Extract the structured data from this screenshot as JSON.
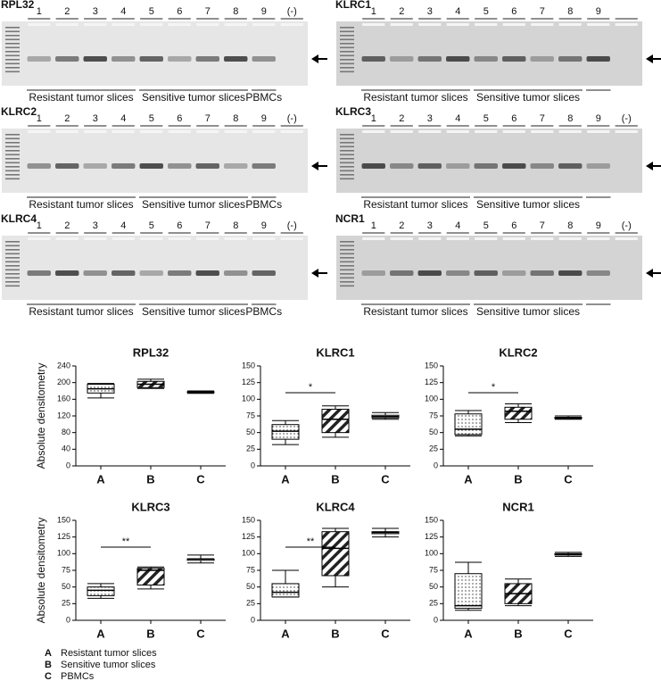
{
  "gels": [
    {
      "title": "RPL32",
      "lanes": [
        "1",
        "2",
        "3",
        "4",
        "5",
        "6",
        "7",
        "8",
        "9",
        "(-)"
      ],
      "groups": [
        "Resistant tumor slices",
        "Sensitive tumor slices",
        "PBMCs"
      ]
    },
    {
      "title": "KLRC1",
      "lanes": [
        "1",
        "2",
        "3",
        "4",
        "5",
        "6",
        "7",
        "8",
        "9"
      ],
      "groups": [
        "Resistant tumor slices",
        "Sensitive tumor slices"
      ]
    },
    {
      "title": "KLRC2",
      "lanes": [
        "1",
        "2",
        "3",
        "4",
        "5",
        "6",
        "7",
        "8",
        "9",
        "(-)"
      ],
      "groups": [
        "Resistant tumor slices",
        "Sensitive tumor slices",
        "PBMCs"
      ]
    },
    {
      "title": "KLRC3",
      "lanes": [
        "1",
        "2",
        "3",
        "4",
        "5",
        "6",
        "7",
        "8",
        "9",
        "(-)"
      ],
      "groups": [
        "Resistant tumor slices",
        "Sensitive tumor slices"
      ]
    },
    {
      "title": "KLRC4",
      "lanes": [
        "1",
        "2",
        "3",
        "4",
        "5",
        "6",
        "7",
        "8",
        "9",
        "(-)"
      ],
      "groups": [
        "Resistant tumor slices",
        "Sensitive tumor slices",
        "PBMCs"
      ]
    },
    {
      "title": "NCR1",
      "lanes": [
        "1",
        "2",
        "3",
        "4",
        "5",
        "6",
        "7",
        "8",
        "9",
        "(-)"
      ],
      "groups": [
        "Resistant tumor slices",
        "Sensitive tumor slices"
      ]
    }
  ],
  "chart_data": [
    {
      "type": "box",
      "title": "RPL32",
      "y_label": "Absolute densitometry",
      "categories": [
        "A",
        "B",
        "C"
      ],
      "ylim": [
        0,
        240
      ],
      "yticks": [
        0,
        40,
        80,
        120,
        160,
        200,
        240
      ],
      "boxes": [
        {
          "min": 163,
          "q1": 175,
          "median": 185,
          "q3": 196,
          "max": 198
        },
        {
          "min": 186,
          "q1": 188,
          "median": 196,
          "q3": 203,
          "max": 208
        },
        {
          "min": 174,
          "q1": 176,
          "median": 177,
          "q3": 178,
          "max": 180
        }
      ]
    },
    {
      "type": "box",
      "title": "KLRC1",
      "categories": [
        "A",
        "B",
        "C"
      ],
      "ylim": [
        0,
        150
      ],
      "yticks": [
        0,
        25,
        50,
        75,
        100,
        125,
        150
      ],
      "significance": "*",
      "boxes": [
        {
          "min": 32,
          "q1": 40,
          "median": 52,
          "q3": 62,
          "max": 68
        },
        {
          "min": 43,
          "q1": 50,
          "median": 70,
          "q3": 85,
          "max": 90
        },
        {
          "min": 70,
          "q1": 72,
          "median": 74,
          "q3": 76,
          "max": 80
        }
      ]
    },
    {
      "type": "box",
      "title": "KLRC2",
      "categories": [
        "A",
        "B",
        "C"
      ],
      "ylim": [
        0,
        150
      ],
      "yticks": [
        0,
        25,
        50,
        75,
        100,
        125,
        150
      ],
      "significance": "*",
      "boxes": [
        {
          "min": 45,
          "q1": 47,
          "median": 55,
          "q3": 78,
          "max": 83
        },
        {
          "min": 65,
          "q1": 70,
          "median": 82,
          "q3": 88,
          "max": 93
        },
        {
          "min": 70,
          "q1": 71,
          "median": 72,
          "q3": 73,
          "max": 75
        }
      ]
    },
    {
      "type": "box",
      "title": "KLRC3",
      "y_label": "Absolute densitometry",
      "categories": [
        "A",
        "B",
        "C"
      ],
      "ylim": [
        0,
        150
      ],
      "yticks": [
        0,
        25,
        50,
        75,
        100,
        125,
        150
      ],
      "significance": "**",
      "boxes": [
        {
          "min": 33,
          "q1": 37,
          "median": 45,
          "q3": 50,
          "max": 55
        },
        {
          "min": 47,
          "q1": 53,
          "median": 75,
          "q3": 78,
          "max": 80
        },
        {
          "min": 86,
          "q1": 90,
          "median": 92,
          "q3": 92,
          "max": 98
        }
      ]
    },
    {
      "type": "box",
      "title": "KLRC4",
      "categories": [
        "A",
        "B",
        "C"
      ],
      "ylim": [
        0,
        150
      ],
      "yticks": [
        0,
        25,
        50,
        75,
        100,
        125,
        150
      ],
      "significance": "**",
      "boxes": [
        {
          "min": 35,
          "q1": 35,
          "median": 42,
          "q3": 55,
          "max": 75
        },
        {
          "min": 50,
          "q1": 67,
          "median": 108,
          "q3": 133,
          "max": 138
        },
        {
          "min": 125,
          "q1": 130,
          "median": 132,
          "q3": 133,
          "max": 138
        }
      ]
    },
    {
      "type": "box",
      "title": "NCR1",
      "categories": [
        "A",
        "B",
        "C"
      ],
      "ylim": [
        0,
        150
      ],
      "yticks": [
        0,
        25,
        50,
        75,
        100,
        125,
        150
      ],
      "boxes": [
        {
          "min": 15,
          "q1": 18,
          "median": 22,
          "q3": 70,
          "max": 87
        },
        {
          "min": 22,
          "q1": 25,
          "median": 40,
          "q3": 55,
          "max": 62
        },
        {
          "min": 96,
          "q1": 98,
          "median": 99,
          "q3": 100,
          "max": 102
        }
      ]
    }
  ],
  "legend": [
    {
      "key": "A",
      "label": "Resistant tumor slices"
    },
    {
      "key": "B",
      "label": "Sensitive tumor slices"
    },
    {
      "key": "C",
      "label": "PBMCs"
    }
  ]
}
